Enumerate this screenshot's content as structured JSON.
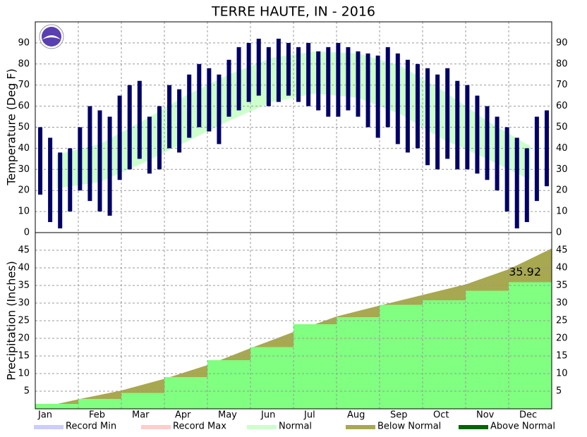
{
  "chart_data": {
    "type": "climate",
    "title": "TERRE HAUTE, IN - 2016",
    "categories": [
      "Jan",
      "Feb",
      "Mar",
      "Apr",
      "May",
      "Jun",
      "Jul",
      "Aug",
      "Sep",
      "Oct",
      "Nov",
      "Dec"
    ],
    "temperature": {
      "ylabel": "Temperature (Deg F)",
      "ylim": [
        0,
        100
      ],
      "yticks": [
        0,
        10,
        20,
        30,
        40,
        50,
        60,
        70,
        80,
        90
      ],
      "color": "#000066",
      "normal_color": "#ccffcc",
      "high": [
        50,
        45,
        38,
        40,
        50,
        60,
        58,
        55,
        65,
        70,
        72,
        55,
        60,
        70,
        68,
        75,
        80,
        78,
        75,
        82,
        88,
        90,
        92,
        88,
        92,
        90,
        88,
        90,
        86,
        88,
        90,
        88,
        86,
        85,
        84,
        88,
        85,
        82,
        80,
        78,
        75,
        78,
        72,
        70,
        65,
        60,
        55,
        50,
        45,
        40,
        55,
        58
      ],
      "low": [
        18,
        5,
        2,
        10,
        20,
        15,
        10,
        8,
        25,
        30,
        35,
        28,
        30,
        40,
        38,
        45,
        50,
        48,
        42,
        55,
        58,
        62,
        65,
        60,
        62,
        65,
        62,
        60,
        58,
        55,
        55,
        58,
        55,
        50,
        45,
        50,
        42,
        38,
        40,
        32,
        30,
        35,
        30,
        30,
        28,
        25,
        20,
        10,
        2,
        5,
        15,
        22
      ],
      "normal_high": [
        37,
        42,
        53,
        65,
        75,
        83,
        86,
        85,
        79,
        67,
        53,
        41
      ],
      "normal_low": [
        21,
        24,
        33,
        43,
        53,
        62,
        66,
        64,
        56,
        44,
        35,
        25
      ]
    },
    "precipitation": {
      "ylabel": "Precipitation (Inches)",
      "ylim": [
        0,
        50
      ],
      "yticks": [
        5,
        10,
        15,
        20,
        25,
        30,
        35,
        40,
        45
      ],
      "actual": [
        1.4,
        2.8,
        4.5,
        9.0,
        13.8,
        17.5,
        24.0,
        26.0,
        29.5,
        30.8,
        33.5,
        35.92
      ],
      "normal": [
        2.7,
        5.2,
        8.5,
        12.4,
        17.2,
        21.8,
        26.2,
        29.3,
        32.3,
        35.3,
        39.6,
        45.5
      ],
      "actual_color": "#80ff80",
      "normal_color": "#a8a850",
      "annotation": "35.92"
    },
    "legend": [
      {
        "name": "Record Min",
        "color": "#ccccff"
      },
      {
        "name": "Record Max",
        "color": "#ffcccc"
      },
      {
        "name": "Normal",
        "color": "#ccffcc"
      },
      {
        "name": "Below Normal",
        "color": "#a8a850"
      },
      {
        "name": "Above Normal",
        "color": "#006600"
      }
    ],
    "grid": true
  }
}
